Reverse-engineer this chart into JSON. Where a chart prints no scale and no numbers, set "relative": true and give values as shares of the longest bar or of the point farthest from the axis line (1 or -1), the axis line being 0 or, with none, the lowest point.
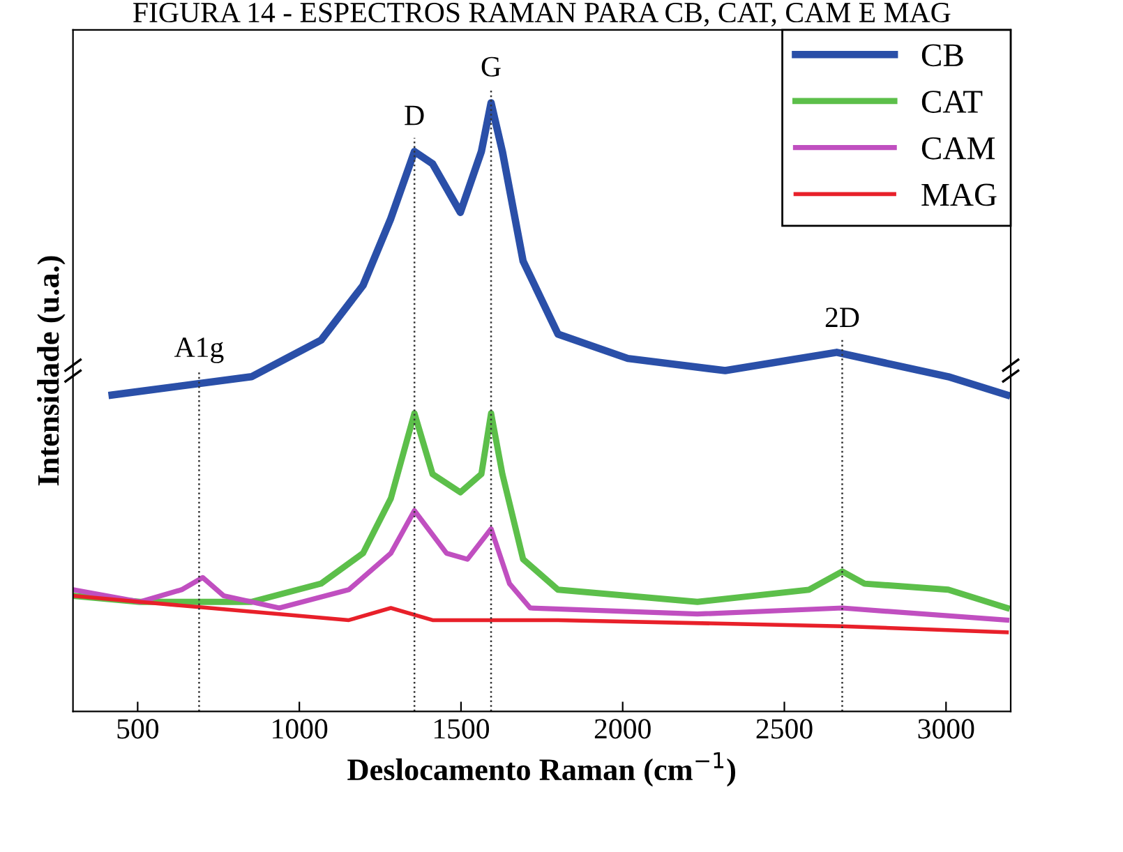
{
  "chart_data": {
    "type": "line",
    "relative": true,
    "title": "FIGURA 14 - ESPECTROS RAMAN PARA CB, CAT, CAM E MAG",
    "xlabel": "Deslocamento Raman (cm$^{−1}$)",
    "ylabel": "Intensidade (u.a.)",
    "xlim": [
      300,
      3200
    ],
    "xticks": [
      500,
      1000,
      1500,
      2000,
      2500,
      3000
    ],
    "legend": "top right",
    "grid": false,
    "series": [
      {
        "name": "CB",
        "color": "#2a4fa8",
        "x": [
          421,
          852,
          1067,
          1197,
          1283,
          1356,
          1412,
          1498,
          1563,
          1593,
          1628,
          1692,
          1800,
          2016,
          2317,
          2662,
          2834,
          3007,
          3188
        ],
        "values": [
          0.52,
          0.55,
          0.61,
          0.7,
          0.81,
          0.92,
          0.9,
          0.82,
          0.92,
          1.0,
          0.92,
          0.74,
          0.62,
          0.58,
          0.56,
          0.59,
          0.57,
          0.55,
          0.52
        ]
      },
      {
        "name": "CAT",
        "color": "#5cbf4a",
        "x": [
          300,
          507,
          852,
          1067,
          1197,
          1283,
          1356,
          1412,
          1498,
          1563,
          1593,
          1628,
          1692,
          1800,
          2231,
          2576,
          2679,
          2748,
          3007,
          3188
        ],
        "values": [
          0.19,
          0.18,
          0.18,
          0.21,
          0.26,
          0.35,
          0.49,
          0.39,
          0.36,
          0.39,
          0.49,
          0.39,
          0.25,
          0.2,
          0.18,
          0.2,
          0.23,
          0.21,
          0.2,
          0.17
        ]
      },
      {
        "name": "CAM",
        "color": "#c04fc0",
        "x": [
          300,
          507,
          636,
          701,
          766,
          938,
          1153,
          1283,
          1356,
          1455,
          1520,
          1593,
          1650,
          1714,
          2231,
          2679,
          3188
        ],
        "values": [
          0.2,
          0.18,
          0.2,
          0.22,
          0.19,
          0.17,
          0.2,
          0.26,
          0.33,
          0.26,
          0.25,
          0.3,
          0.21,
          0.17,
          0.16,
          0.17,
          0.15
        ]
      },
      {
        "name": "MAG",
        "color": "#e8202a",
        "x": [
          300,
          507,
          722,
          938,
          1153,
          1283,
          1412,
          1800,
          2679,
          3188
        ],
        "values": [
          0.19,
          0.18,
          0.17,
          0.16,
          0.15,
          0.17,
          0.15,
          0.15,
          0.14,
          0.13
        ]
      }
    ],
    "ref_lines": [
      {
        "axis": "x",
        "value": 690,
        "label": "A1g",
        "color": "#333333",
        "line_style": "dotted"
      },
      {
        "axis": "x",
        "value": 1356,
        "label": "D",
        "color": "#333333",
        "line_style": "dotted"
      },
      {
        "axis": "x",
        "value": 1593,
        "label": "G",
        "color": "#333333",
        "line_style": "dotted"
      },
      {
        "axis": "x",
        "value": 2679,
        "label": "2D",
        "color": "#333333",
        "line_style": "dotted"
      }
    ]
  }
}
